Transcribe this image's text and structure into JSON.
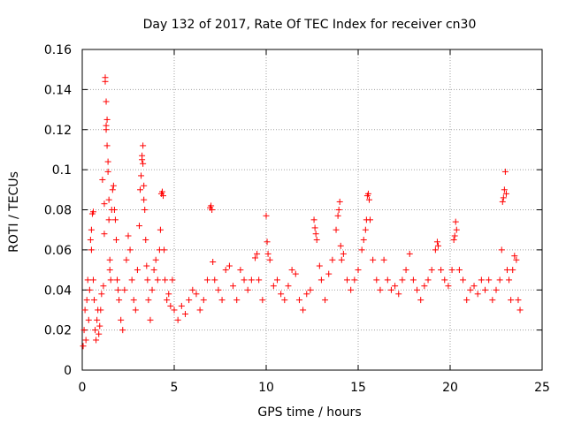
{
  "chart_data": {
    "type": "scatter",
    "title": "Day 132 of 2017, Rate Of TEC Index for receiver cn30",
    "xlabel": "GPS time / hours",
    "ylabel": "ROTI / TECUs",
    "xlim": [
      0,
      25
    ],
    "ylim": [
      0,
      0.16
    ],
    "xticks": [
      0,
      5,
      10,
      15,
      20,
      25
    ],
    "yticks": [
      0,
      0.02,
      0.04,
      0.06,
      0.08,
      0.1,
      0.12,
      0.14,
      0.16
    ],
    "xtick_labels": [
      "0",
      "5",
      "10",
      "15",
      "20",
      "25"
    ],
    "ytick_labels": [
      "0",
      "0.02",
      "0.04",
      "0.06",
      "0.08",
      "0.1",
      "0.12",
      "0.14",
      "0.16"
    ],
    "grid": true,
    "marker": "+",
    "marker_color": "#ff0000",
    "series": [
      {
        "name": "ROTI",
        "points": [
          [
            0.05,
            0.012
          ],
          [
            0.1,
            0.02
          ],
          [
            0.15,
            0.03
          ],
          [
            0.2,
            0.015
          ],
          [
            0.25,
            0.035
          ],
          [
            0.3,
            0.045
          ],
          [
            0.35,
            0.025
          ],
          [
            0.4,
            0.04
          ],
          [
            0.45,
            0.065
          ],
          [
            0.5,
            0.07
          ],
          [
            0.5,
            0.06
          ],
          [
            0.55,
            0.078
          ],
          [
            0.6,
            0.079
          ],
          [
            0.6,
            0.045
          ],
          [
            0.65,
            0.035
          ],
          [
            0.7,
            0.02
          ],
          [
            0.75,
            0.015
          ],
          [
            0.8,
            0.025
          ],
          [
            0.85,
            0.03
          ],
          [
            0.9,
            0.018
          ],
          [
            0.95,
            0.022
          ],
          [
            1.0,
            0.03
          ],
          [
            1.05,
            0.038
          ],
          [
            1.1,
            0.095
          ],
          [
            1.15,
            0.042
          ],
          [
            1.2,
            0.068
          ],
          [
            1.2,
            0.083
          ],
          [
            1.25,
            0.146
          ],
          [
            1.25,
            0.144
          ],
          [
            1.3,
            0.134
          ],
          [
            1.3,
            0.122
          ],
          [
            1.3,
            0.12
          ],
          [
            1.35,
            0.125
          ],
          [
            1.35,
            0.112
          ],
          [
            1.4,
            0.104
          ],
          [
            1.4,
            0.099
          ],
          [
            1.45,
            0.085
          ],
          [
            1.45,
            0.075
          ],
          [
            1.5,
            0.055
          ],
          [
            1.5,
            0.05
          ],
          [
            1.55,
            0.045
          ],
          [
            1.6,
            0.08
          ],
          [
            1.65,
            0.09
          ],
          [
            1.7,
            0.092
          ],
          [
            1.75,
            0.08
          ],
          [
            1.8,
            0.075
          ],
          [
            1.85,
            0.065
          ],
          [
            1.9,
            0.045
          ],
          [
            1.95,
            0.04
          ],
          [
            2.0,
            0.035
          ],
          [
            2.1,
            0.025
          ],
          [
            2.2,
            0.02
          ],
          [
            2.3,
            0.04
          ],
          [
            2.4,
            0.055
          ],
          [
            2.5,
            0.067
          ],
          [
            2.6,
            0.06
          ],
          [
            2.7,
            0.045
          ],
          [
            2.8,
            0.035
          ],
          [
            2.9,
            0.03
          ],
          [
            3.0,
            0.05
          ],
          [
            3.1,
            0.072
          ],
          [
            3.15,
            0.09
          ],
          [
            3.2,
            0.097
          ],
          [
            3.25,
            0.105
          ],
          [
            3.25,
            0.107
          ],
          [
            3.3,
            0.112
          ],
          [
            3.3,
            0.103
          ],
          [
            3.35,
            0.092
          ],
          [
            3.35,
            0.085
          ],
          [
            3.4,
            0.08
          ],
          [
            3.45,
            0.065
          ],
          [
            3.5,
            0.052
          ],
          [
            3.55,
            0.045
          ],
          [
            3.6,
            0.035
          ],
          [
            3.7,
            0.025
          ],
          [
            3.8,
            0.04
          ],
          [
            3.9,
            0.05
          ],
          [
            4.0,
            0.055
          ],
          [
            4.1,
            0.045
          ],
          [
            4.2,
            0.06
          ],
          [
            4.25,
            0.07
          ],
          [
            4.3,
            0.088
          ],
          [
            4.35,
            0.089
          ],
          [
            4.4,
            0.087
          ],
          [
            4.45,
            0.06
          ],
          [
            4.5,
            0.045
          ],
          [
            4.6,
            0.035
          ],
          [
            4.7,
            0.038
          ],
          [
            4.8,
            0.032
          ],
          [
            4.9,
            0.045
          ],
          [
            5.0,
            0.03
          ],
          [
            5.2,
            0.025
          ],
          [
            5.4,
            0.032
          ],
          [
            5.6,
            0.028
          ],
          [
            5.8,
            0.035
          ],
          [
            6.0,
            0.04
          ],
          [
            6.2,
            0.038
          ],
          [
            6.4,
            0.03
          ],
          [
            6.6,
            0.035
          ],
          [
            6.8,
            0.045
          ],
          [
            6.95,
            0.081
          ],
          [
            7.0,
            0.082
          ],
          [
            7.05,
            0.08
          ],
          [
            7.1,
            0.054
          ],
          [
            7.2,
            0.045
          ],
          [
            7.4,
            0.04
          ],
          [
            7.6,
            0.035
          ],
          [
            7.8,
            0.05
          ],
          [
            8.0,
            0.052
          ],
          [
            8.2,
            0.042
          ],
          [
            8.4,
            0.035
          ],
          [
            8.6,
            0.05
          ],
          [
            8.8,
            0.045
          ],
          [
            9.0,
            0.04
          ],
          [
            9.2,
            0.045
          ],
          [
            9.4,
            0.056
          ],
          [
            9.5,
            0.058
          ],
          [
            9.6,
            0.045
          ],
          [
            9.8,
            0.035
          ],
          [
            10.0,
            0.077
          ],
          [
            10.05,
            0.064
          ],
          [
            10.1,
            0.058
          ],
          [
            10.2,
            0.055
          ],
          [
            10.4,
            0.042
          ],
          [
            10.6,
            0.045
          ],
          [
            10.8,
            0.038
          ],
          [
            11.0,
            0.035
          ],
          [
            11.2,
            0.042
          ],
          [
            11.4,
            0.05
          ],
          [
            11.6,
            0.048
          ],
          [
            11.8,
            0.035
          ],
          [
            12.0,
            0.03
          ],
          [
            12.2,
            0.038
          ],
          [
            12.4,
            0.04
          ],
          [
            12.6,
            0.075
          ],
          [
            12.65,
            0.071
          ],
          [
            12.7,
            0.068
          ],
          [
            12.75,
            0.065
          ],
          [
            12.9,
            0.052
          ],
          [
            13.0,
            0.045
          ],
          [
            13.2,
            0.035
          ],
          [
            13.4,
            0.048
          ],
          [
            13.6,
            0.055
          ],
          [
            13.8,
            0.07
          ],
          [
            13.9,
            0.077
          ],
          [
            13.95,
            0.08
          ],
          [
            14.0,
            0.084
          ],
          [
            14.05,
            0.062
          ],
          [
            14.1,
            0.055
          ],
          [
            14.2,
            0.058
          ],
          [
            14.4,
            0.045
          ],
          [
            14.6,
            0.04
          ],
          [
            14.8,
            0.045
          ],
          [
            15.0,
            0.05
          ],
          [
            15.2,
            0.06
          ],
          [
            15.3,
            0.065
          ],
          [
            15.4,
            0.07
          ],
          [
            15.45,
            0.075
          ],
          [
            15.5,
            0.087
          ],
          [
            15.55,
            0.088
          ],
          [
            15.6,
            0.085
          ],
          [
            15.65,
            0.075
          ],
          [
            15.8,
            0.055
          ],
          [
            16.0,
            0.045
          ],
          [
            16.2,
            0.04
          ],
          [
            16.4,
            0.055
          ],
          [
            16.6,
            0.045
          ],
          [
            16.8,
            0.04
          ],
          [
            17.0,
            0.042
          ],
          [
            17.2,
            0.038
          ],
          [
            17.4,
            0.045
          ],
          [
            17.6,
            0.05
          ],
          [
            17.8,
            0.058
          ],
          [
            18.0,
            0.045
          ],
          [
            18.2,
            0.04
          ],
          [
            18.4,
            0.035
          ],
          [
            18.6,
            0.042
          ],
          [
            18.8,
            0.045
          ],
          [
            19.0,
            0.05
          ],
          [
            19.2,
            0.06
          ],
          [
            19.3,
            0.064
          ],
          [
            19.35,
            0.062
          ],
          [
            19.5,
            0.05
          ],
          [
            19.7,
            0.045
          ],
          [
            19.9,
            0.042
          ],
          [
            20.1,
            0.05
          ],
          [
            20.2,
            0.065
          ],
          [
            20.25,
            0.067
          ],
          [
            20.3,
            0.074
          ],
          [
            20.35,
            0.07
          ],
          [
            20.5,
            0.05
          ],
          [
            20.7,
            0.045
          ],
          [
            20.9,
            0.035
          ],
          [
            21.1,
            0.04
          ],
          [
            21.3,
            0.042
          ],
          [
            21.5,
            0.038
          ],
          [
            21.7,
            0.045
          ],
          [
            21.9,
            0.04
          ],
          [
            22.1,
            0.045
          ],
          [
            22.3,
            0.035
          ],
          [
            22.5,
            0.04
          ],
          [
            22.7,
            0.045
          ],
          [
            22.8,
            0.06
          ],
          [
            22.85,
            0.084
          ],
          [
            22.9,
            0.086
          ],
          [
            22.95,
            0.09
          ],
          [
            23.0,
            0.099
          ],
          [
            23.05,
            0.088
          ],
          [
            23.1,
            0.05
          ],
          [
            23.2,
            0.045
          ],
          [
            23.3,
            0.035
          ],
          [
            23.4,
            0.05
          ],
          [
            23.5,
            0.057
          ],
          [
            23.6,
            0.055
          ],
          [
            23.7,
            0.035
          ],
          [
            23.8,
            0.03
          ]
        ]
      }
    ]
  }
}
